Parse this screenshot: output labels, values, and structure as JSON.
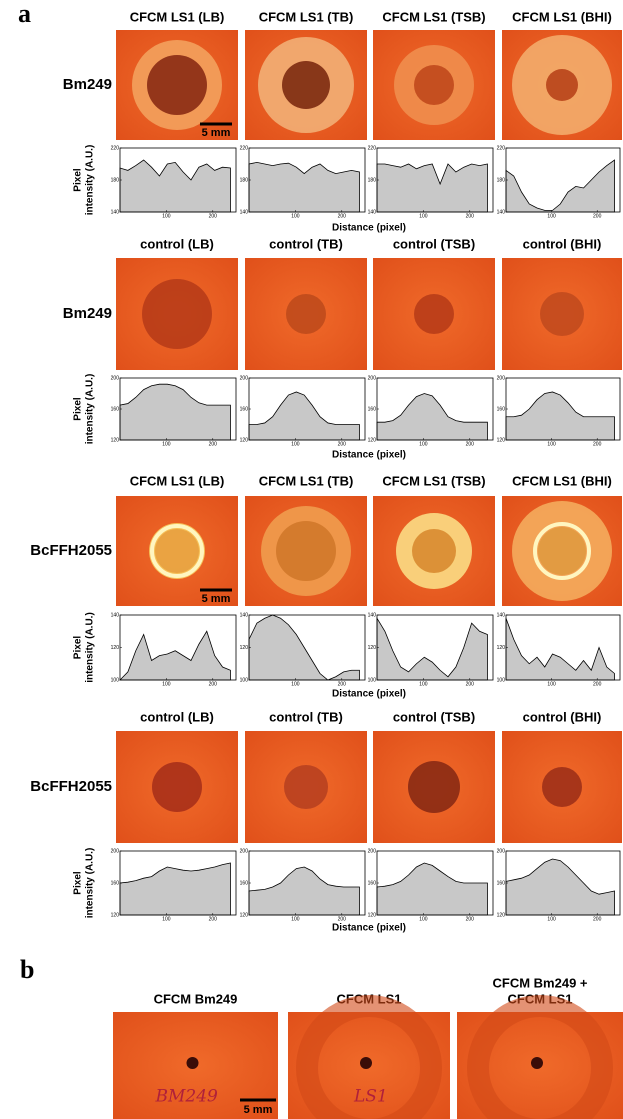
{
  "panel_a": {
    "label": "a",
    "x": [
      0,
      17,
      34,
      51,
      68,
      85,
      102,
      119,
      136,
      153,
      170,
      187,
      204,
      221,
      238
    ],
    "xlim": [
      0,
      250
    ],
    "xticks": [
      100,
      200
    ],
    "ylabel_lines": [
      "Pixel",
      "intensity (A.U.)"
    ],
    "xlabel": "Distance (pixel)",
    "rows": [
      {
        "headers": [
          "CFCM LS1 (LB)",
          "CFCM LS1 (TB)",
          "CFCM LS1 (TSB)",
          "CFCM LS1 (BHI)"
        ],
        "row_label": "Bm249",
        "scale_bar": "5 mm",
        "ylim": [
          140,
          220
        ],
        "yticks": [
          140,
          180,
          220
        ],
        "profiles": [
          [
            195,
            192,
            198,
            205,
            196,
            185,
            200,
            202,
            190,
            180,
            196,
            200,
            192,
            196,
            195
          ],
          [
            200,
            202,
            200,
            198,
            200,
            201,
            196,
            188,
            196,
            200,
            192,
            188,
            190,
            192,
            190
          ],
          [
            200,
            200,
            198,
            196,
            200,
            194,
            198,
            200,
            175,
            200,
            190,
            196,
            200,
            198,
            200
          ],
          [
            192,
            185,
            165,
            150,
            145,
            142,
            142,
            150,
            165,
            172,
            170,
            180,
            190,
            198,
            205
          ]
        ]
      },
      {
        "headers": [
          "control (LB)",
          "control (TB)",
          "control (TSB)",
          "control (BHI)"
        ],
        "row_label": "Bm249",
        "ylim": [
          120,
          200
        ],
        "yticks": [
          120,
          160,
          200
        ],
        "profiles": [
          [
            165,
            167,
            175,
            185,
            190,
            192,
            192,
            190,
            185,
            175,
            168,
            165,
            165,
            165,
            165
          ],
          [
            140,
            140,
            142,
            150,
            165,
            178,
            182,
            178,
            165,
            150,
            142,
            140,
            140,
            140,
            140
          ],
          [
            143,
            143,
            145,
            152,
            165,
            176,
            180,
            177,
            165,
            150,
            145,
            143,
            143,
            143,
            143
          ],
          [
            150,
            150,
            152,
            160,
            172,
            180,
            182,
            178,
            168,
            156,
            150,
            150,
            150,
            150,
            150
          ]
        ]
      },
      {
        "headers": [
          "CFCM LS1 (LB)",
          "CFCM LS1 (TB)",
          "CFCM LS1 (TSB)",
          "CFCM LS1 (BHI)"
        ],
        "row_label": "BcFFH2055",
        "scale_bar": "5 mm",
        "ylim": [
          100,
          140
        ],
        "yticks": [
          100,
          120,
          140
        ],
        "profiles": [
          [
            100,
            105,
            118,
            128,
            112,
            115,
            116,
            118,
            115,
            112,
            122,
            130,
            115,
            108,
            106
          ],
          [
            125,
            135,
            138,
            140,
            138,
            134,
            128,
            120,
            112,
            104,
            100,
            102,
            105,
            106,
            106
          ],
          [
            138,
            130,
            118,
            108,
            105,
            110,
            114,
            111,
            106,
            102,
            108,
            120,
            135,
            130,
            128
          ],
          [
            138,
            125,
            115,
            110,
            114,
            108,
            116,
            114,
            110,
            106,
            112,
            106,
            120,
            108,
            104
          ]
        ]
      },
      {
        "headers": [
          "control (LB)",
          "control (TB)",
          "control (TSB)",
          "control (BHI)"
        ],
        "row_label": "BcFFH2055",
        "ylim": [
          120,
          200
        ],
        "yticks": [
          120,
          160,
          200
        ],
        "profiles": [
          [
            160,
            161,
            163,
            166,
            168,
            175,
            180,
            178,
            176,
            175,
            176,
            178,
            180,
            183,
            185
          ],
          [
            150,
            151,
            152,
            155,
            160,
            170,
            178,
            180,
            175,
            165,
            158,
            156,
            155,
            155,
            155
          ],
          [
            155,
            156,
            158,
            162,
            170,
            180,
            185,
            182,
            175,
            168,
            162,
            160,
            160,
            160,
            160
          ],
          [
            162,
            164,
            166,
            170,
            178,
            186,
            190,
            188,
            180,
            170,
            160,
            150,
            146,
            148,
            150
          ]
        ]
      }
    ]
  },
  "panel_b": {
    "label": "b",
    "headers": [
      [
        "CFCM Bm249"
      ],
      [
        "CFCM LS1"
      ],
      [
        "CFCM Bm249 +",
        "CFCM LS1"
      ]
    ],
    "handwriting": [
      "BM249",
      "LS1"
    ],
    "scale_bar": "5 mm"
  }
}
